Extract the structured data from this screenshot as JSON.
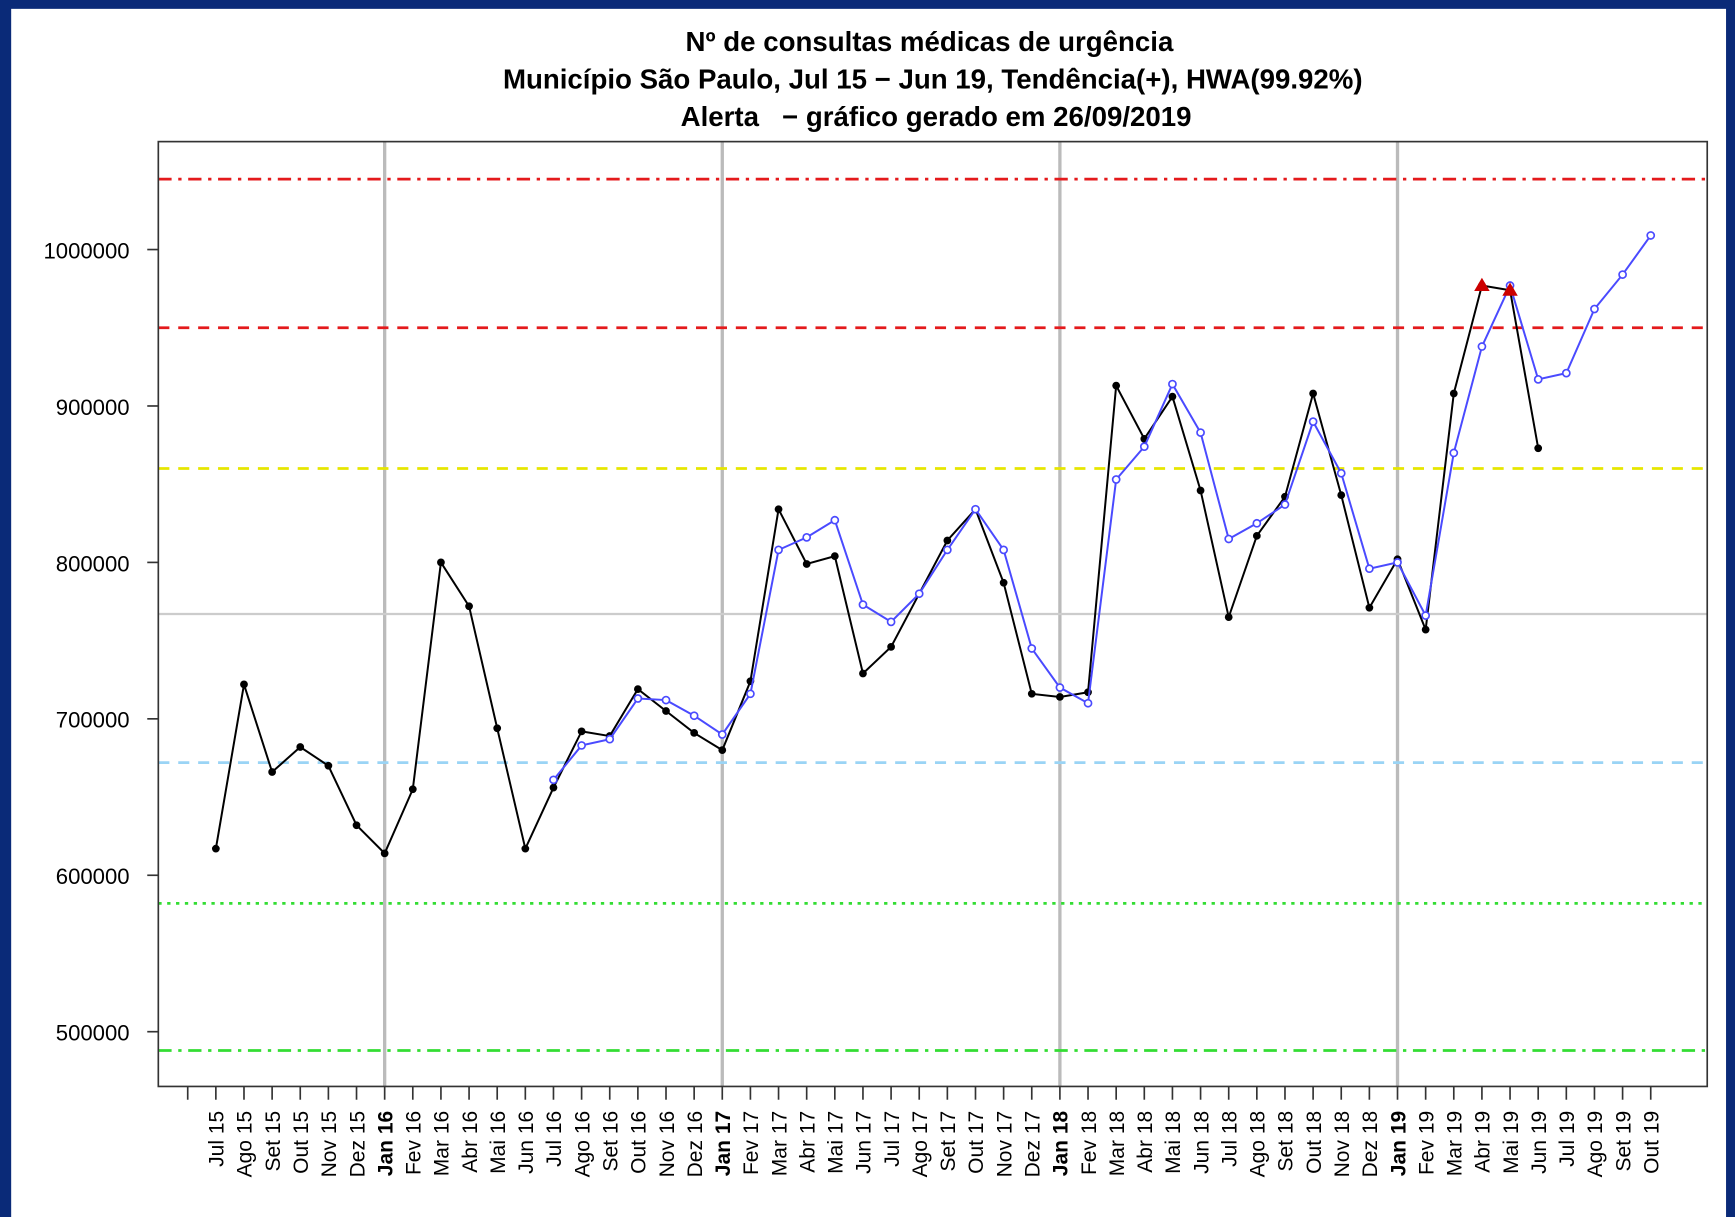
{
  "chart_data": {
    "type": "line",
    "title": [
      "Nº de consultas médicas de urgência",
      "Município São Paulo, Jul 15 − Jun 19, Tendência(+), HWA(99.92%)",
      "Alerta   − gráfico gerado em 26/09/2019"
    ],
    "categories": [
      "Jul 15",
      "Ago 15",
      "Set 15",
      "Out 15",
      "Nov 15",
      "Dez 15",
      "Jan 16",
      "Fev 16",
      "Mar 16",
      "Abr 16",
      "Mai 16",
      "Jun 16",
      "Jul 16",
      "Ago 16",
      "Set 16",
      "Out 16",
      "Nov 16",
      "Dez 16",
      "Jan 17",
      "Fev 17",
      "Mar 17",
      "Abr 17",
      "Mai 17",
      "Jun 17",
      "Jul 17",
      "Ago 17",
      "Set 17",
      "Out 17",
      "Nov 17",
      "Dez 17",
      "Jan 18",
      "Fev 18",
      "Mar 18",
      "Abr 18",
      "Mai 18",
      "Jun 18",
      "Jul 18",
      "Ago 18",
      "Set 18",
      "Out 18",
      "Nov 18",
      "Dez 18",
      "Jan 19",
      "Fev 19",
      "Mar 19",
      "Abr 19",
      "Mai 19",
      "Jun 19",
      "Jul 19",
      "Ago 19",
      "Set 19",
      "Out 19"
    ],
    "series": [
      {
        "color": "#000000",
        "values": [
          617000,
          722000,
          666000,
          682000,
          670000,
          632000,
          614000,
          655000,
          800000,
          772000,
          694000,
          617000,
          656000,
          692000,
          689000,
          719000,
          705000,
          691000,
          680000,
          724000,
          834000,
          799000,
          804000,
          729000,
          746000,
          780000,
          814000,
          834000,
          787000,
          716000,
          714000,
          717000,
          913000,
          879000,
          906000,
          846000,
          765000,
          817000,
          842000,
          908000,
          843000,
          771000,
          802000,
          757000,
          908000,
          977000,
          974000,
          873000,
          null,
          null,
          null,
          null
        ]
      },
      {
        "color": "#4a4aff",
        "values": [
          null,
          null,
          null,
          null,
          null,
          null,
          null,
          null,
          null,
          null,
          null,
          null,
          661000,
          683000,
          687000,
          713000,
          712000,
          702000,
          690000,
          716000,
          808000,
          816000,
          827000,
          773000,
          762000,
          780000,
          808000,
          834000,
          808000,
          745000,
          720000,
          710000,
          853000,
          874000,
          914000,
          883000,
          815000,
          825000,
          837000,
          890000,
          857000,
          796000,
          800000,
          766000,
          870000,
          938000,
          977000,
          917000,
          921000,
          962000,
          984000,
          1009000
        ]
      }
    ],
    "alerts": {
      "series": 0,
      "categories": [
        "Abr 19",
        "Mai 19"
      ],
      "color": "#cc0000"
    },
    "year_lines": [
      "Jan 16",
      "Jan 17",
      "Jan 18",
      "Jan 19"
    ],
    "hlines": [
      {
        "value": 1045000,
        "color": "#e41a1c",
        "dash": "dashdot"
      },
      {
        "value": 950000,
        "color": "#e41a1c",
        "dash": "dashed"
      },
      {
        "value": 860000,
        "color": "#e6e600",
        "dash": "dashed"
      },
      {
        "value": 767000,
        "color": "#cccccc",
        "dash": "solid"
      },
      {
        "value": 672000,
        "color": "#9ad4f5",
        "dash": "dashed"
      },
      {
        "value": 582000,
        "color": "#33dd33",
        "dash": "dotted"
      },
      {
        "value": 488000,
        "color": "#33dd33",
        "dash": "dashdot"
      }
    ],
    "ylim": [
      465000,
      1069000
    ],
    "yticks": [
      500000,
      600000,
      700000,
      800000,
      900000,
      1000000
    ]
  }
}
